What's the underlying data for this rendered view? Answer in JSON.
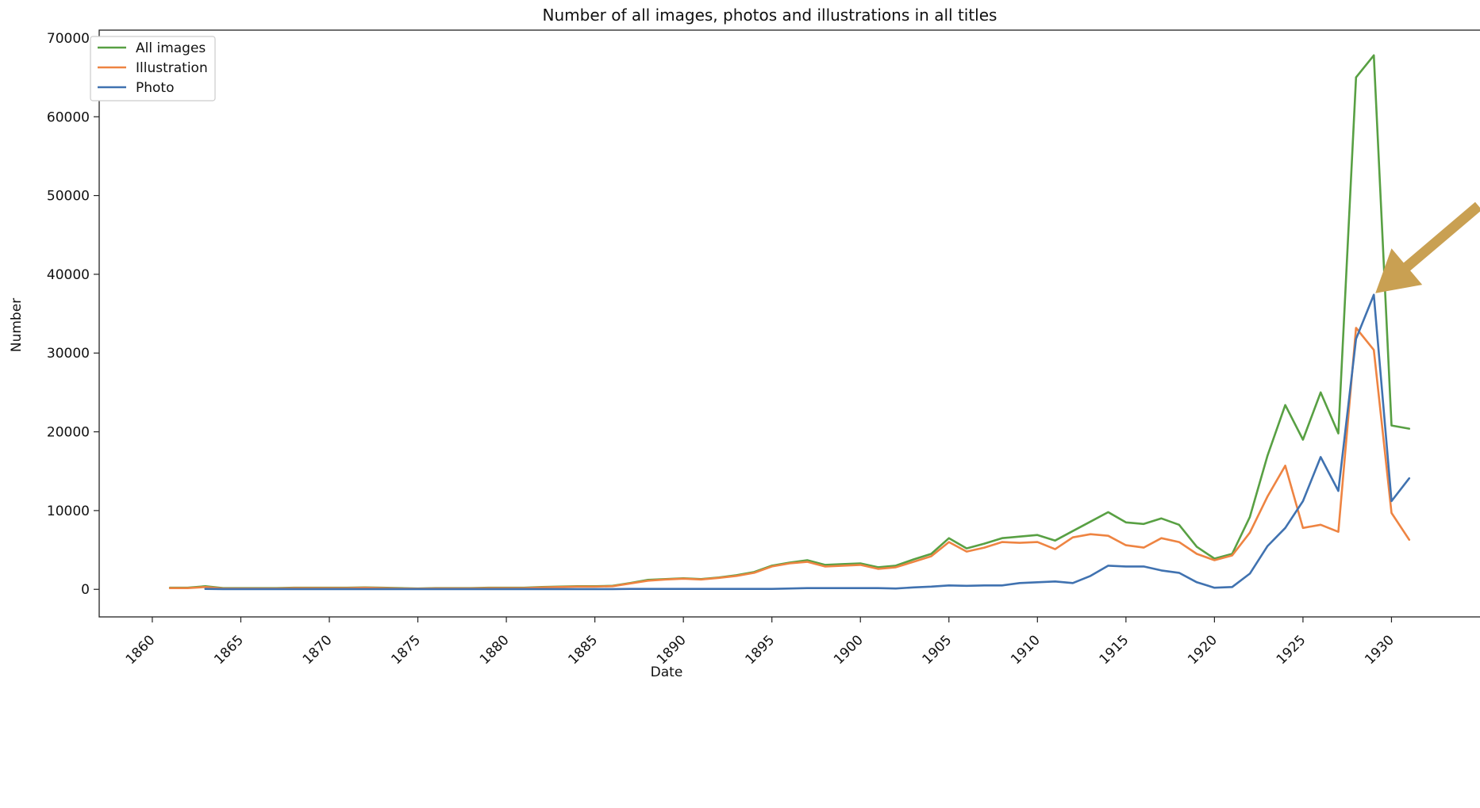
{
  "chart_data": {
    "type": "line",
    "title": "Number of all images, photos and illustrations in all titles",
    "xlabel": "Date",
    "ylabel": "Number",
    "xlim": [
      1857,
      1935
    ],
    "ylim": [
      -3500,
      71000
    ],
    "xticks": [
      1860,
      1865,
      1870,
      1875,
      1880,
      1885,
      1890,
      1895,
      1900,
      1905,
      1910,
      1915,
      1920,
      1925,
      1930
    ],
    "yticks": [
      0,
      10000,
      20000,
      30000,
      40000,
      50000,
      60000,
      70000
    ],
    "grid": false,
    "legend_position": "top-left",
    "series": [
      {
        "name": "All images",
        "color": "#58a043",
        "x": [
          1861,
          1862,
          1863,
          1864,
          1865,
          1866,
          1867,
          1868,
          1869,
          1870,
          1871,
          1872,
          1873,
          1874,
          1875,
          1876,
          1877,
          1878,
          1879,
          1880,
          1881,
          1882,
          1883,
          1884,
          1885,
          1886,
          1887,
          1888,
          1889,
          1890,
          1891,
          1892,
          1893,
          1894,
          1895,
          1896,
          1897,
          1898,
          1899,
          1900,
          1901,
          1902,
          1903,
          1904,
          1905,
          1906,
          1907,
          1908,
          1909,
          1910,
          1911,
          1912,
          1913,
          1914,
          1915,
          1916,
          1917,
          1918,
          1919,
          1920,
          1921,
          1922,
          1923,
          1924,
          1925,
          1926,
          1927,
          1928,
          1929,
          1930,
          1931
        ],
        "values": [
          200,
          200,
          400,
          150,
          150,
          150,
          150,
          200,
          200,
          200,
          200,
          250,
          200,
          150,
          100,
          150,
          150,
          150,
          200,
          200,
          200,
          300,
          350,
          400,
          400,
          450,
          800,
          1200,
          1300,
          1400,
          1300,
          1500,
          1800,
          2200,
          3000,
          3400,
          3700,
          3100,
          3200,
          3300,
          2800,
          3000,
          3800,
          4500,
          6500,
          5200,
          5800,
          6500,
          6700,
          6900,
          6200,
          7400,
          8600,
          9800,
          8500,
          8300,
          9000,
          8200,
          5400,
          3900,
          4500,
          9200,
          17000,
          23400,
          19000,
          25000,
          19800,
          65000,
          67800,
          20800,
          20400
        ]
      },
      {
        "name": "Illustration",
        "color": "#ee8442",
        "x": [
          1861,
          1862,
          1863,
          1864,
          1865,
          1866,
          1867,
          1868,
          1869,
          1870,
          1871,
          1872,
          1873,
          1874,
          1875,
          1876,
          1877,
          1878,
          1879,
          1880,
          1881,
          1882,
          1883,
          1884,
          1885,
          1886,
          1887,
          1888,
          1889,
          1890,
          1891,
          1892,
          1893,
          1894,
          1895,
          1896,
          1897,
          1898,
          1899,
          1900,
          1901,
          1902,
          1903,
          1904,
          1905,
          1906,
          1907,
          1908,
          1909,
          1910,
          1911,
          1912,
          1913,
          1914,
          1915,
          1916,
          1917,
          1918,
          1919,
          1920,
          1921,
          1922,
          1923,
          1924,
          1925,
          1926,
          1927,
          1928,
          1929,
          1930,
          1931
        ],
        "values": [
          150,
          150,
          300,
          100,
          100,
          100,
          100,
          150,
          150,
          150,
          150,
          200,
          150,
          100,
          80,
          120,
          120,
          120,
          150,
          150,
          150,
          250,
          300,
          350,
          350,
          400,
          750,
          1100,
          1250,
          1350,
          1250,
          1450,
          1700,
          2100,
          2900,
          3300,
          3500,
          2900,
          3000,
          3100,
          2600,
          2800,
          3500,
          4200,
          6000,
          4800,
          5300,
          6000,
          5900,
          6000,
          5100,
          6600,
          7000,
          6800,
          5600,
          5300,
          6500,
          6000,
          4500,
          3700,
          4300,
          7200,
          11800,
          15700,
          7800,
          8200,
          7300,
          33200,
          30400,
          9700,
          6300
        ]
      },
      {
        "name": "Photo",
        "color": "#4072b0",
        "x": [
          1863,
          1864,
          1865,
          1866,
          1867,
          1868,
          1869,
          1870,
          1871,
          1872,
          1873,
          1874,
          1875,
          1876,
          1877,
          1878,
          1879,
          1880,
          1881,
          1882,
          1883,
          1884,
          1885,
          1886,
          1887,
          1888,
          1889,
          1890,
          1891,
          1892,
          1893,
          1894,
          1895,
          1896,
          1897,
          1898,
          1899,
          1900,
          1901,
          1902,
          1903,
          1904,
          1905,
          1906,
          1907,
          1908,
          1909,
          1910,
          1911,
          1912,
          1913,
          1914,
          1915,
          1916,
          1917,
          1918,
          1919,
          1920,
          1921,
          1922,
          1923,
          1924,
          1925,
          1926,
          1927,
          1928,
          1929,
          1930,
          1931
        ],
        "values": [
          50,
          30,
          30,
          30,
          30,
          30,
          30,
          30,
          30,
          30,
          30,
          30,
          30,
          30,
          30,
          30,
          30,
          30,
          30,
          30,
          30,
          30,
          30,
          30,
          50,
          50,
          50,
          50,
          50,
          50,
          50,
          50,
          50,
          100,
          150,
          150,
          150,
          150,
          150,
          100,
          250,
          350,
          500,
          450,
          500,
          500,
          800,
          900,
          1000,
          800,
          1700,
          3000,
          2900,
          2900,
          2400,
          2100,
          900,
          200,
          300,
          2000,
          5500,
          7800,
          11200,
          16800,
          12500,
          31800,
          37400,
          11200,
          14100
        ]
      }
    ],
    "annotations": [
      {
        "type": "arrow",
        "color": "#c9a052",
        "points_to_x": 1929,
        "points_to_y": 37400
      }
    ]
  }
}
